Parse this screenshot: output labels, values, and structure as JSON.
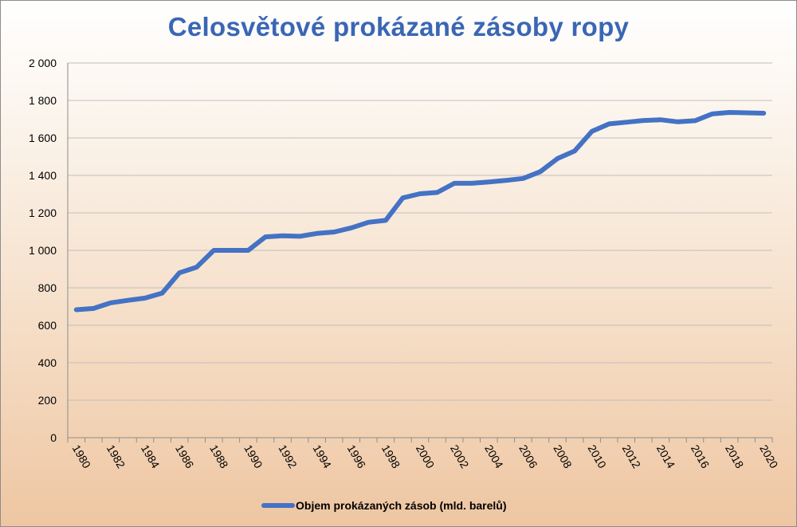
{
  "chart_data": {
    "type": "line",
    "title": "Celosvětové prokázané zásoby ropy",
    "xlabel": "",
    "ylabel": "",
    "ylim": [
      0,
      2000
    ],
    "y_ticks": [
      0,
      200,
      400,
      600,
      800,
      1000,
      1200,
      1400,
      1600,
      1800,
      2000
    ],
    "y_tick_labels": [
      "0",
      "200",
      "400",
      "600",
      "800",
      "1 000",
      "1 200",
      "1 400",
      "1 600",
      "1 800",
      "2 000"
    ],
    "x_tick_labels": [
      "1980",
      "1982",
      "1984",
      "1986",
      "1988",
      "1990",
      "1992",
      "1994",
      "1996",
      "1998",
      "2000",
      "2002",
      "2004",
      "2006",
      "2008",
      "2010",
      "2012",
      "2014",
      "2016",
      "2018",
      "2020"
    ],
    "grid": true,
    "legend_position": "bottom",
    "x": [
      1980,
      1981,
      1982,
      1983,
      1984,
      1985,
      1986,
      1987,
      1988,
      1989,
      1990,
      1991,
      1992,
      1993,
      1994,
      1995,
      1996,
      1997,
      1998,
      1999,
      2000,
      2001,
      2002,
      2003,
      2004,
      2005,
      2006,
      2007,
      2008,
      2009,
      2010,
      2011,
      2012,
      2013,
      2014,
      2015,
      2016,
      2017,
      2018,
      2019,
      2020
    ],
    "series": [
      {
        "name": "Objem prokázaných zásob (mld. barelů)",
        "color": "#4472c4",
        "values": [
          683,
          690,
          720,
          733,
          745,
          772,
          880,
          910,
          1000,
          1000,
          1000,
          1072,
          1078,
          1075,
          1090,
          1098,
          1120,
          1150,
          1160,
          1280,
          1302,
          1309,
          1358,
          1358,
          1365,
          1373,
          1384,
          1420,
          1490,
          1530,
          1635,
          1675,
          1684,
          1693,
          1697,
          1686,
          1692,
          1728,
          1736,
          1734,
          1732
        ]
      }
    ]
  }
}
